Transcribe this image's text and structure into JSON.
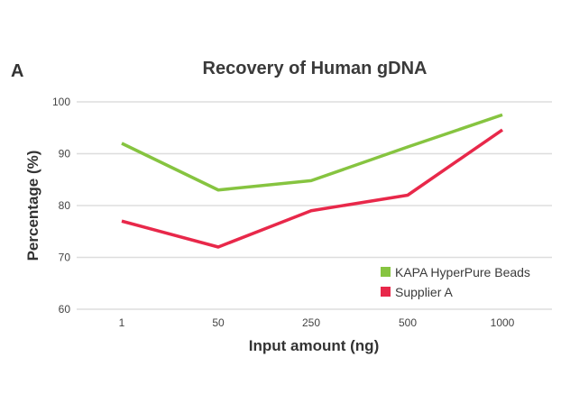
{
  "panel_label": "A",
  "chart_data": {
    "type": "line",
    "title": "Recovery of Human gDNA",
    "xlabel": "Input amount (ng)",
    "ylabel": "Percentage (%)",
    "categories": [
      "1",
      "50",
      "250",
      "500",
      "1000"
    ],
    "ylim": [
      60,
      100
    ],
    "yticks": [
      60,
      70,
      80,
      90,
      100
    ],
    "grid": "horizontal",
    "legend_position": "bottom-right",
    "series": [
      {
        "name": "KAPA HyperPure Beads",
        "color": "#86c440",
        "values": [
          92,
          83,
          84.8,
          91.3,
          97.5
        ]
      },
      {
        "name": "Supplier A",
        "color": "#e8284a",
        "values": [
          77,
          72,
          79,
          82,
          94.6
        ]
      }
    ]
  }
}
